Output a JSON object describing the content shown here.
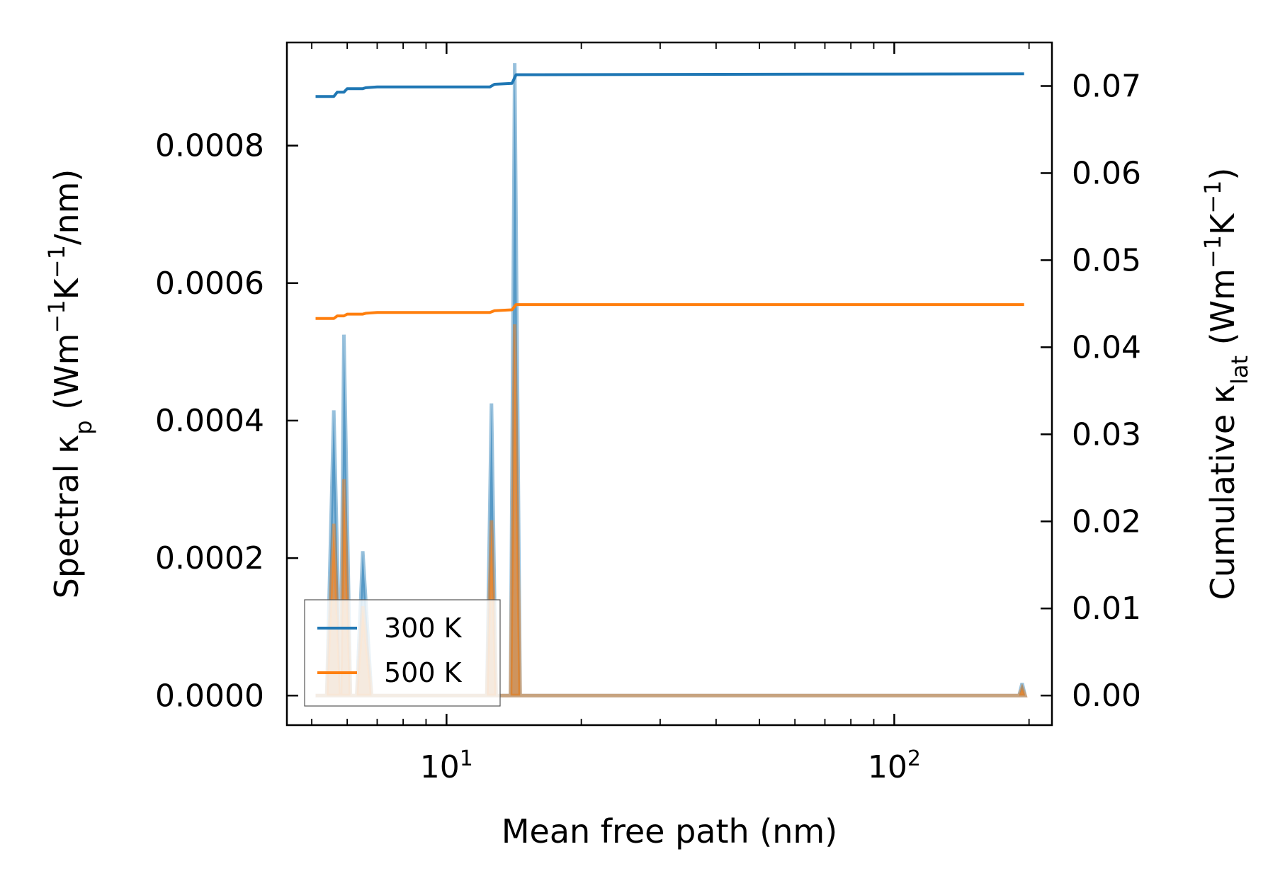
{
  "chart_data": {
    "type": "line",
    "x_scale": "log",
    "xlabel": "Mean free path (nm)",
    "xlim": [
      4.4,
      225
    ],
    "x_ticks": [
      10,
      100
    ],
    "x_tick_labels": [
      {
        "base": "10",
        "exp": "1"
      },
      {
        "base": "10",
        "exp": "2"
      }
    ],
    "ylabel_left": {
      "pre": "Spectral κ",
      "sub": "p",
      "post_a": " (Wm",
      "sup1": "−1",
      "post_b": "K",
      "sup2": "−1",
      "post_c": "/nm)"
    },
    "ylim_left": [
      -4.3e-05,
      0.00095
    ],
    "y_left_ticks": [
      "0.0000",
      "0.0002",
      "0.0004",
      "0.0006",
      "0.0008"
    ],
    "ylabel_right": {
      "pre": "Cumulative κ",
      "sub": "lat",
      "post_a": " (Wm",
      "sup1": "−1",
      "post_b": "K",
      "sup2": "−1",
      "post_c": ")"
    },
    "ylim_right": [
      -0.0034,
      0.075
    ],
    "y_right_ticks": [
      "0.00",
      "0.01",
      "0.02",
      "0.03",
      "0.04",
      "0.05",
      "0.06",
      "0.07"
    ],
    "legend_position": "lower-left",
    "series": [
      {
        "name": "300 K",
        "color": "#1f77b4",
        "cumulative": {
          "x": [
            5.1,
            5.6,
            5.7,
            5.9,
            6.0,
            6.5,
            6.6,
            7.0,
            12.5,
            12.8,
            14.0,
            14.3,
            195.0
          ],
          "y": [
            0.0688,
            0.0688,
            0.0693,
            0.0693,
            0.0697,
            0.0697,
            0.0698,
            0.0699,
            0.0699,
            0.0702,
            0.0703,
            0.0713,
            0.0714
          ]
        },
        "spectral": {
          "x": [
            5.1,
            5.4,
            5.6,
            5.8,
            5.9,
            6.1,
            6.3,
            6.5,
            6.8,
            12.3,
            12.6,
            12.9,
            13.9,
            14.2,
            14.6,
            190.0,
            193.0,
            196.0
          ],
          "y": [
            0.0,
            0.0,
            0.000415,
            0.0,
            0.000525,
            0.0,
            0.0,
            0.00021,
            0.0,
            0.0,
            0.000425,
            0.0,
            0.0,
            0.00092,
            0.0,
            0.0,
            1.8e-05,
            0.0
          ]
        }
      },
      {
        "name": "500 K",
        "color": "#ff7f0e",
        "cumulative": {
          "x": [
            5.1,
            5.6,
            5.7,
            5.9,
            6.0,
            6.5,
            6.6,
            7.0,
            12.5,
            12.8,
            14.0,
            14.3,
            195.0
          ],
          "y": [
            0.0433,
            0.0433,
            0.0436,
            0.0436,
            0.0438,
            0.0438,
            0.0439,
            0.044,
            0.044,
            0.0442,
            0.0443,
            0.0449,
            0.0449
          ]
        },
        "spectral": {
          "x": [
            5.1,
            5.4,
            5.6,
            5.8,
            5.9,
            6.1,
            6.3,
            6.5,
            6.8,
            12.3,
            12.6,
            12.9,
            13.9,
            14.2,
            14.6,
            190.0,
            193.0,
            196.0
          ],
          "y": [
            0.0,
            0.0,
            0.00025,
            0.0,
            0.000315,
            0.0,
            0.0,
            0.00013,
            0.0,
            0.0,
            0.000255,
            0.0,
            0.0,
            0.00054,
            0.0,
            0.0,
            1.1e-05,
            0.0
          ]
        }
      }
    ]
  }
}
